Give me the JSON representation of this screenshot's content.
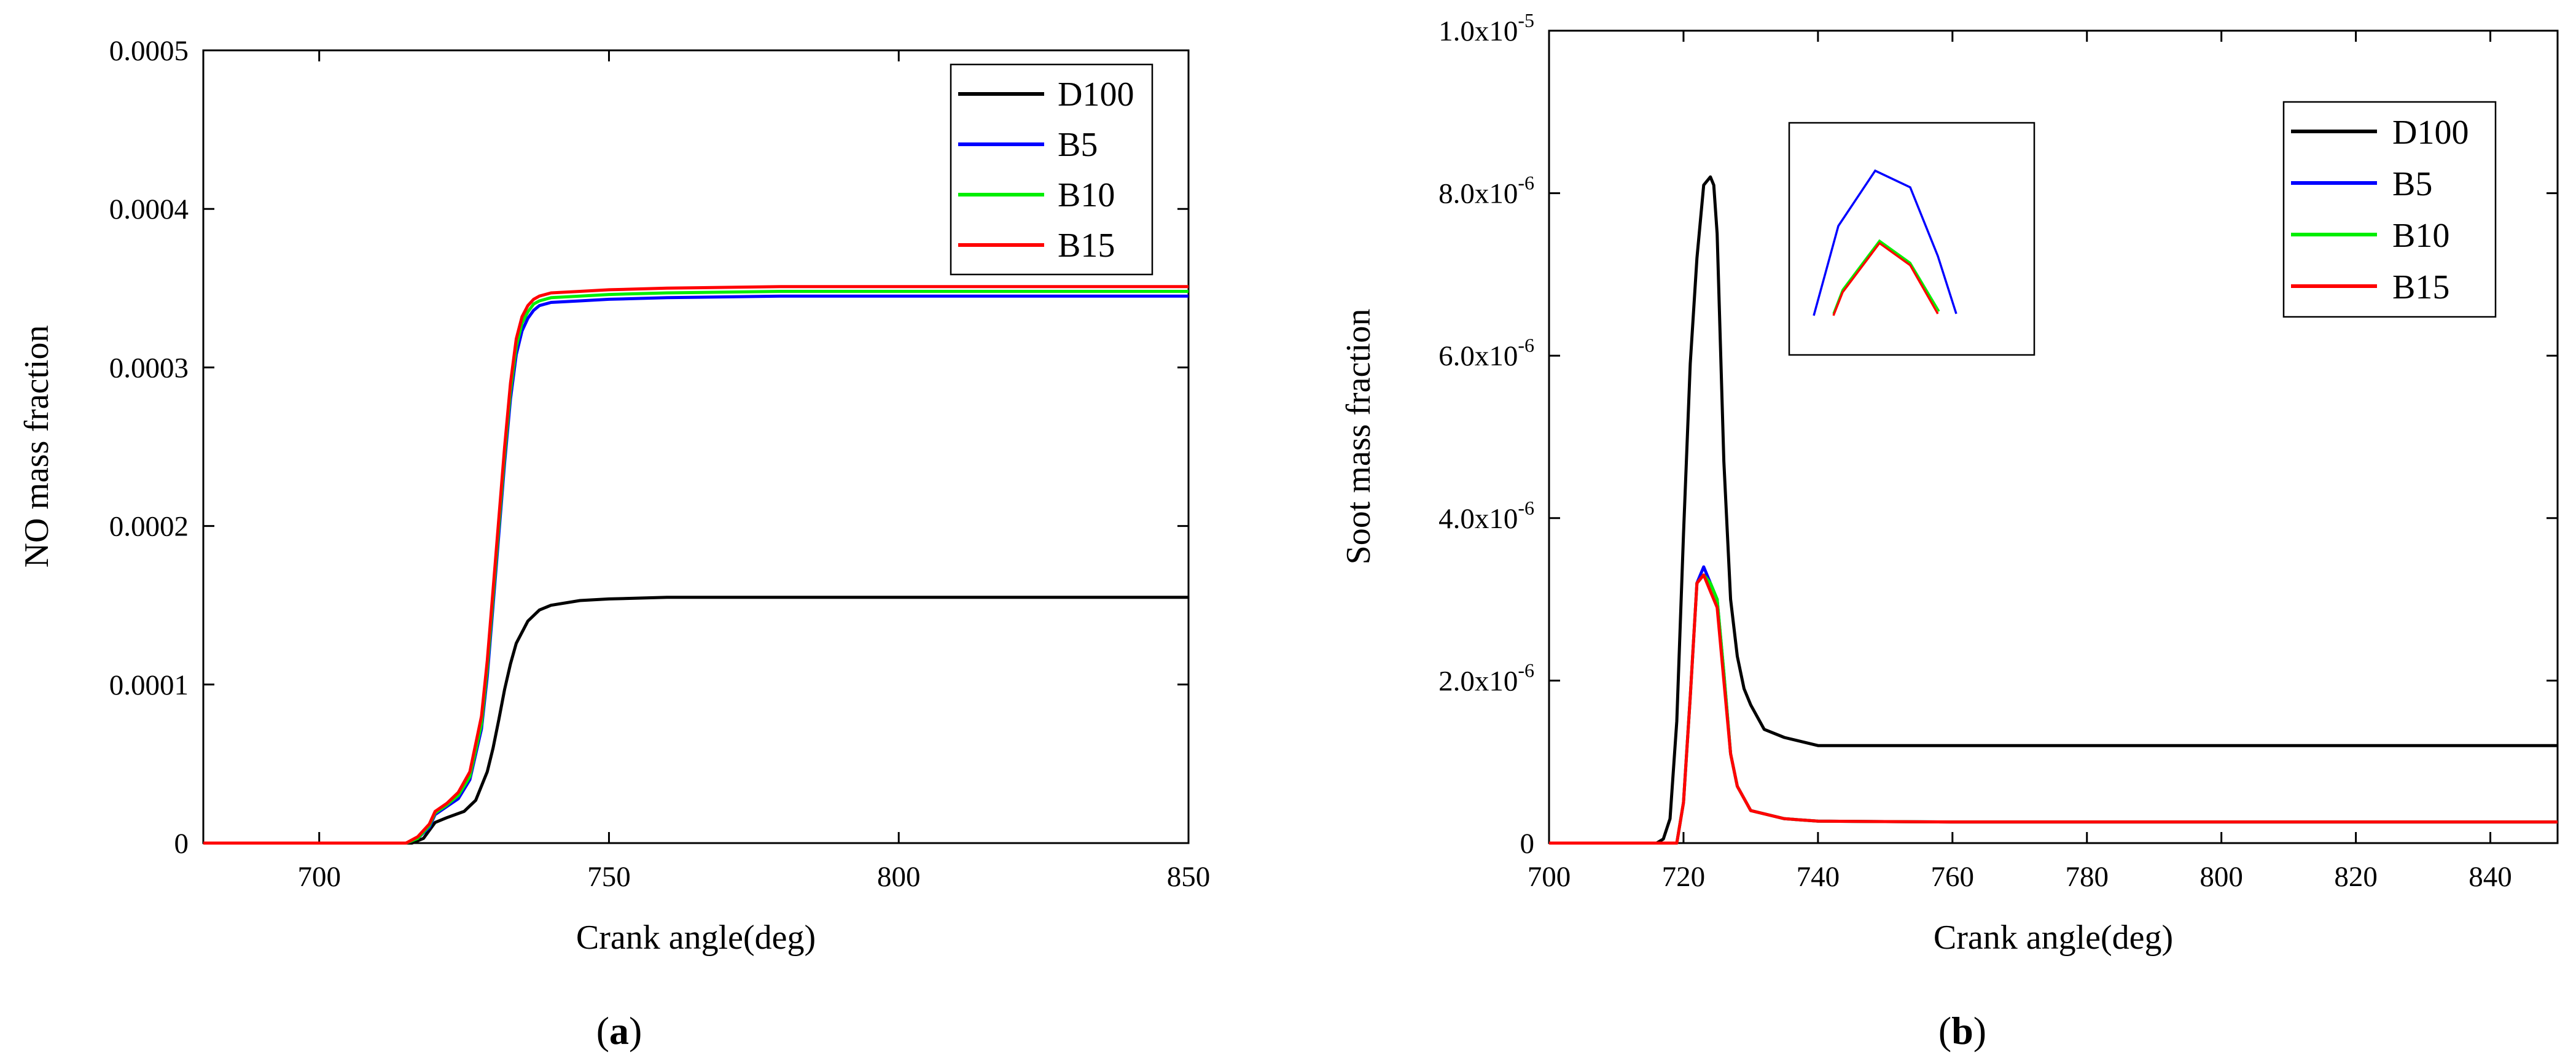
{
  "chart_data": [
    {
      "type": "line",
      "panel_label_open": "(",
      "panel_label_letter": "a",
      "panel_label_close": ")",
      "xlabel": "Crank angle(deg)",
      "ylabel": "NO mass fraction",
      "xlim": [
        680,
        850
      ],
      "ylim": [
        0,
        0.0005
      ],
      "xticks": [
        700,
        750,
        800,
        850
      ],
      "yticks": [
        0,
        0.0001,
        0.0002,
        0.0003,
        0.0004,
        0.0005
      ],
      "ytick_labels": [
        "0",
        "0.0001",
        "0.0002",
        "0.0003",
        "0.0004",
        "0.0005"
      ],
      "legend_position": "top-right",
      "series": [
        {
          "name": "D100",
          "color": "#000000",
          "x": [
            680,
            716,
            718,
            719,
            720,
            722,
            725,
            727,
            729,
            730,
            731,
            732,
            733,
            734,
            736,
            738,
            740,
            745,
            750,
            760,
            780,
            800,
            850
          ],
          "y": [
            0,
            0,
            3e-06,
            8e-06,
            1.3e-05,
            1.6e-05,
            2e-05,
            2.7e-05,
            4.5e-05,
            6e-05,
            7.8e-05,
            9.7e-05,
            0.000113,
            0.000126,
            0.00014,
            0.000147,
            0.00015,
            0.000153,
            0.000154,
            0.000155,
            0.000155,
            0.000155,
            0.000155
          ]
        },
        {
          "name": "B5",
          "color": "#0000ff",
          "x": [
            680,
            715,
            717,
            719,
            720,
            722,
            724,
            726,
            728,
            729,
            730,
            731,
            732,
            733,
            734,
            735,
            736,
            737,
            738,
            740,
            745,
            750,
            760,
            780,
            800,
            850
          ],
          "y": [
            0,
            0,
            3e-06,
            1e-05,
            1.8e-05,
            2.3e-05,
            2.8e-05,
            4e-05,
            7.2e-05,
            0.000105,
            0.00015,
            0.000195,
            0.00024,
            0.00028,
            0.000308,
            0.000323,
            0.000331,
            0.000336,
            0.000339,
            0.000341,
            0.000342,
            0.000343,
            0.000344,
            0.000345,
            0.000345,
            0.000345
          ]
        },
        {
          "name": "B10",
          "color": "#00ee00",
          "x": [
            680,
            715,
            717,
            719,
            720,
            722,
            724,
            726,
            728,
            729,
            730,
            731,
            732,
            733,
            734,
            735,
            736,
            737,
            738,
            740,
            745,
            750,
            760,
            780,
            800,
            850
          ],
          "y": [
            0,
            0,
            3e-06,
            1.1e-05,
            1.9e-05,
            2.4e-05,
            3e-05,
            4.2e-05,
            7.5e-05,
            0.00011,
            0.000155,
            0.0002,
            0.000245,
            0.000285,
            0.000313,
            0.000328,
            0.000335,
            0.00034,
            0.000342,
            0.000344,
            0.000345,
            0.000346,
            0.000347,
            0.000348,
            0.000348,
            0.000348
          ]
        },
        {
          "name": "B15",
          "color": "#ff0000",
          "x": [
            680,
            715,
            717,
            719,
            720,
            722,
            724,
            726,
            728,
            729,
            730,
            731,
            732,
            733,
            734,
            735,
            736,
            737,
            738,
            740,
            745,
            750,
            760,
            780,
            800,
            850
          ],
          "y": [
            0,
            0,
            4e-06,
            1.2e-05,
            2e-05,
            2.5e-05,
            3.2e-05,
            4.5e-05,
            8e-05,
            0.000115,
            0.00016,
            0.000205,
            0.00025,
            0.00029,
            0.000318,
            0.000332,
            0.000339,
            0.000343,
            0.000345,
            0.000347,
            0.000348,
            0.000349,
            0.00035,
            0.000351,
            0.000351,
            0.000351
          ]
        }
      ]
    },
    {
      "type": "line",
      "panel_label_open": "(",
      "panel_label_letter": "b",
      "panel_label_close": ")",
      "xlabel": "Crank angle(deg)",
      "ylabel": "Soot mass fraction",
      "xlim": [
        700,
        850
      ],
      "ylim": [
        0,
        1e-05
      ],
      "xticks": [
        700,
        720,
        740,
        760,
        780,
        800,
        820,
        840
      ],
      "yticks": [
        0,
        2e-06,
        4e-06,
        6e-06,
        8e-06,
        1e-05
      ],
      "ytick_labels": [
        {
          "mant": "0",
          "exp": ""
        },
        {
          "mant": "2.0x10",
          "exp": "-6"
        },
        {
          "mant": "4.0x10",
          "exp": "-6"
        },
        {
          "mant": "6.0x10",
          "exp": "-6"
        },
        {
          "mant": "8.0x10",
          "exp": "-6"
        },
        {
          "mant": "1.0x10",
          "exp": "-5"
        }
      ],
      "legend_position": "top-right",
      "inset": {
        "description_free": true,
        "position": "upper-middle"
      },
      "series": [
        {
          "name": "D100",
          "color": "#000000",
          "x": [
            700,
            716,
            717,
            718,
            719,
            720,
            721,
            722,
            723,
            724,
            724.5,
            725,
            726,
            727,
            728,
            729,
            730,
            732,
            735,
            740,
            750,
            760,
            800,
            850
          ],
          "y": [
            0,
            0,
            5e-08,
            3e-07,
            1.5e-06,
            3.8e-06,
            5.9e-06,
            7.2e-06,
            8.1e-06,
            8.2e-06,
            8.1e-06,
            7.5e-06,
            4.7e-06,
            3e-06,
            2.3e-06,
            1.9e-06,
            1.7e-06,
            1.4e-06,
            1.3e-06,
            1.2e-06,
            1.2e-06,
            1.2e-06,
            1.2e-06,
            1.2e-06
          ]
        },
        {
          "name": "B5",
          "color": "#0000ff",
          "x": [
            700,
            719,
            720,
            721,
            722,
            723,
            724,
            725,
            726,
            727,
            728,
            730,
            735,
            740,
            760,
            800,
            850
          ],
          "y": [
            0,
            0,
            5e-07,
            1.8e-06,
            3.2e-06,
            3.4e-06,
            3.2e-06,
            3e-06,
            2.1e-06,
            1.1e-06,
            7e-07,
            4e-07,
            3e-07,
            2.7e-07,
            2.6e-07,
            2.6e-07,
            2.6e-07
          ]
        },
        {
          "name": "B10",
          "color": "#00ee00",
          "x": [
            700,
            719,
            720,
            721,
            722,
            723,
            724,
            725,
            726,
            727,
            728,
            730,
            735,
            740,
            760,
            800,
            850
          ],
          "y": [
            0,
            0,
            5e-07,
            1.8e-06,
            3.2e-06,
            3.3e-06,
            3.2e-06,
            3e-06,
            2.1e-06,
            1.1e-06,
            7e-07,
            4e-07,
            3e-07,
            2.7e-07,
            2.6e-07,
            2.6e-07,
            2.6e-07
          ]
        },
        {
          "name": "B15",
          "color": "#ff0000",
          "x": [
            700,
            719,
            720,
            721,
            722,
            723,
            724,
            725,
            726,
            727,
            728,
            730,
            735,
            740,
            760,
            800,
            850
          ],
          "y": [
            0,
            0,
            5e-07,
            1.8e-06,
            3.2e-06,
            3.3e-06,
            3.1e-06,
            2.9e-06,
            2e-06,
            1.1e-06,
            7e-07,
            4e-07,
            3e-07,
            2.7e-07,
            2.6e-07,
            2.6e-07,
            2.6e-07
          ]
        }
      ]
    }
  ]
}
